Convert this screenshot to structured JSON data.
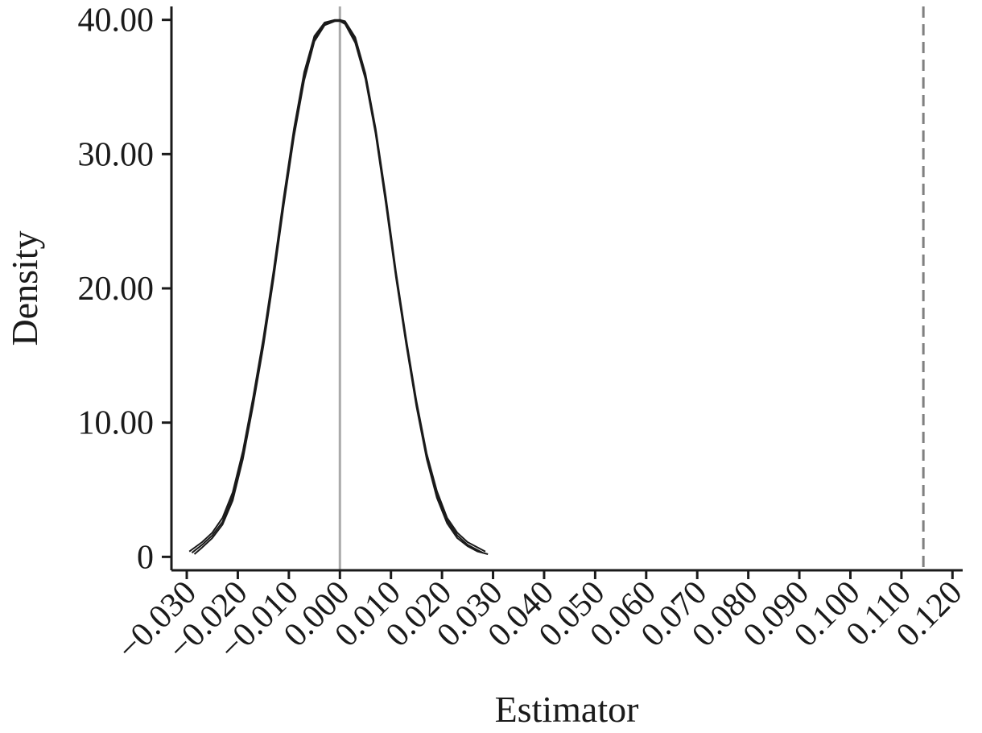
{
  "chart_data": {
    "type": "line",
    "title": "",
    "xlabel": "Estimator",
    "ylabel": "Density",
    "xlim": [
      -0.033,
      0.122
    ],
    "ylim": [
      -1.0,
      41.0
    ],
    "x_ticks": [
      -0.03,
      -0.02,
      -0.01,
      0.0,
      0.01,
      0.02,
      0.03,
      0.04,
      0.05,
      0.06,
      0.07,
      0.08,
      0.09,
      0.1,
      0.11,
      0.12
    ],
    "x_tick_labels": [
      "−0.030",
      "−0.020",
      "−0.010",
      "0.000",
      "0.010",
      "0.020",
      "0.030",
      "0.040",
      "0.050",
      "0.060",
      "0.070",
      "0.080",
      "0.090",
      "0.100",
      "0.110",
      "0.120"
    ],
    "y_ticks": [
      0,
      10,
      20,
      30,
      40
    ],
    "y_tick_labels": [
      "0",
      "10.00",
      "20.00",
      "30.00",
      "40.00"
    ],
    "grid": false,
    "legend": "none",
    "series": [
      {
        "x": [
          -0.029,
          -0.027,
          -0.025,
          -0.023,
          -0.021,
          -0.019,
          -0.017,
          -0.015,
          -0.013,
          -0.011,
          -0.009,
          -0.007,
          -0.005,
          -0.003,
          -0.001,
          0.0,
          0.001,
          0.003,
          0.005,
          0.007,
          0.009,
          0.011,
          0.013,
          0.015,
          0.017,
          0.019,
          0.021,
          0.023,
          0.025,
          0.027,
          0.028
        ],
        "values": [
          0.3,
          0.9,
          1.6,
          2.6,
          4.5,
          7.6,
          11.6,
          16.0,
          21.0,
          26.5,
          31.6,
          35.8,
          38.6,
          39.7,
          39.9,
          40.0,
          39.8,
          38.5,
          35.8,
          31.7,
          26.5,
          21.0,
          16.0,
          11.4,
          7.5,
          4.6,
          2.7,
          1.6,
          0.9,
          0.5,
          0.3
        ]
      },
      {
        "x": [
          -0.0295,
          -0.027,
          -0.025,
          -0.023,
          -0.021,
          -0.019,
          -0.017,
          -0.015,
          -0.013,
          -0.011,
          -0.009,
          -0.007,
          -0.005,
          -0.003,
          -0.001,
          0.0,
          0.001,
          0.003,
          0.005,
          0.007,
          0.009,
          0.011,
          0.013,
          0.015,
          0.017,
          0.019,
          0.021,
          0.023,
          0.025,
          0.027,
          0.0285
        ],
        "values": [
          0.4,
          1.1,
          1.8,
          2.9,
          4.8,
          7.9,
          11.9,
          16.3,
          21.3,
          26.8,
          31.9,
          36.1,
          38.8,
          39.8,
          40.0,
          40.0,
          39.9,
          38.7,
          36.0,
          31.9,
          26.8,
          21.2,
          16.2,
          11.6,
          7.7,
          4.9,
          2.9,
          1.8,
          1.1,
          0.7,
          0.4
        ]
      },
      {
        "x": [
          -0.0285,
          -0.027,
          -0.025,
          -0.023,
          -0.021,
          -0.019,
          -0.017,
          -0.015,
          -0.013,
          -0.011,
          -0.009,
          -0.007,
          -0.005,
          -0.003,
          -0.001,
          0.0,
          0.001,
          0.003,
          0.005,
          0.007,
          0.009,
          0.011,
          0.013,
          0.015,
          0.017,
          0.019,
          0.021,
          0.023,
          0.025,
          0.027,
          0.029
        ],
        "values": [
          0.2,
          0.7,
          1.4,
          2.4,
          4.2,
          7.3,
          11.3,
          15.7,
          20.7,
          26.2,
          31.3,
          35.5,
          38.4,
          39.6,
          39.9,
          39.9,
          39.7,
          38.3,
          35.6,
          31.5,
          26.3,
          20.8,
          15.8,
          11.2,
          7.3,
          4.4,
          2.5,
          1.4,
          0.8,
          0.4,
          0.2
        ]
      }
    ],
    "reference_lines": [
      {
        "x": 0.0,
        "style": "solid",
        "color": "#aaaaaa"
      },
      {
        "x": 0.1143,
        "style": "dashed",
        "color": "#808080"
      }
    ],
    "colors": {
      "curve": "#1a1a1a",
      "axis": "#1a1a1a"
    }
  }
}
